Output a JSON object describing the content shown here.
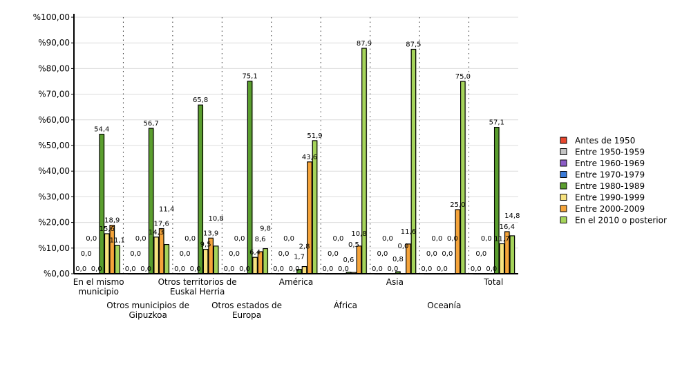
{
  "chart_data": {
    "type": "bar",
    "title": "",
    "xlabel": "",
    "ylabel": "",
    "ylim": [
      0,
      100
    ],
    "yticks": [
      "%0,00",
      "%10,00",
      "%20,00",
      "%30,00",
      "%40,00",
      "%50,00",
      "%60,00",
      "%70,00",
      "%80,00",
      "%90,00",
      "%100,00"
    ],
    "grid": true,
    "legend_position": "right",
    "categories": [
      "En el mismo municipio",
      "Otros municipios de Gipuzkoa",
      "Otros territorios de Euskal Herria",
      "Otros estados de Europa",
      "América",
      "África",
      "Asia",
      "Oceanía",
      "Total"
    ],
    "series": [
      {
        "name": "Antes de 1950",
        "color": "#e8472e",
        "values": [
          0,
          0,
          0,
          0,
          0,
          0,
          0,
          0,
          0
        ]
      },
      {
        "name": "Entre 1950-1959",
        "color": "#c4c4c4",
        "values": [
          0,
          0,
          0,
          0,
          0,
          0,
          0,
          0,
          0
        ]
      },
      {
        "name": "Entre 1960-1969",
        "color": "#8b5cc6",
        "values": [
          0,
          0,
          0,
          0,
          0,
          0,
          0,
          0,
          0
        ]
      },
      {
        "name": "Entre 1970-1979",
        "color": "#3b7bd8",
        "values": [
          0,
          0,
          0,
          0,
          0,
          0,
          0,
          0,
          0
        ]
      },
      {
        "name": "Entre 1980-1989",
        "color": "#5a9e2e",
        "values": [
          54.4,
          56.7,
          65.8,
          75.1,
          1.7,
          0.6,
          0.8,
          0,
          57.1
        ]
      },
      {
        "name": "Entre 1990-1999",
        "color": "#f7e27f",
        "values": [
          15.6,
          14.3,
          9.5,
          6.4,
          2.8,
          0.5,
          0,
          0,
          11.7
        ]
      },
      {
        "name": "Entre 2000-2009",
        "color": "#f5a43a",
        "values": [
          18.9,
          17.6,
          13.9,
          8.6,
          43.6,
          10.8,
          11.6,
          25.0,
          16.4
        ]
      },
      {
        "name": "En el 2010 o posterior",
        "color": "#a5d45a",
        "values": [
          11.1,
          11.4,
          10.8,
          9.8,
          51.9,
          87.9,
          87.5,
          75.0,
          14.8
        ]
      }
    ]
  }
}
